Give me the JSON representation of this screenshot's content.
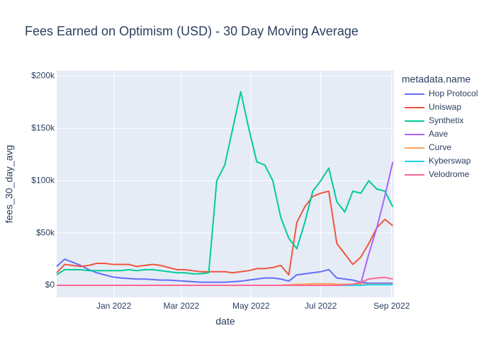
{
  "chart_data": {
    "type": "line",
    "title": "Fees Earned on Optimism (USD) - 30 Day Moving Average",
    "x_label": "date",
    "y_label": "fees_30_day_avg",
    "legend_title": "metadata.name",
    "legend": "right",
    "grid": true,
    "x": [
      "2021-11-12",
      "2021-11-19",
      "2021-11-26",
      "2021-12-03",
      "2021-12-10",
      "2021-12-17",
      "2021-12-24",
      "2021-12-31",
      "2022-01-07",
      "2022-01-14",
      "2022-01-21",
      "2022-01-28",
      "2022-02-04",
      "2022-02-11",
      "2022-02-18",
      "2022-02-25",
      "2022-03-04",
      "2022-03-11",
      "2022-03-18",
      "2022-03-25",
      "2022-04-01",
      "2022-04-08",
      "2022-04-15",
      "2022-04-22",
      "2022-04-29",
      "2022-05-06",
      "2022-05-13",
      "2022-05-20",
      "2022-05-27",
      "2022-06-03",
      "2022-06-10",
      "2022-06-17",
      "2022-06-24",
      "2022-07-01",
      "2022-07-08",
      "2022-07-15",
      "2022-07-22",
      "2022-07-29",
      "2022-08-05",
      "2022-08-12",
      "2022-08-19",
      "2022-08-26",
      "2022-09-02"
    ],
    "xlim": [
      "2021-11-12",
      "2022-09-03"
    ],
    "xticks": [
      {
        "value": "2022-01-01",
        "label": "Jan 2022"
      },
      {
        "value": "2022-03-01",
        "label": "Mar 2022"
      },
      {
        "value": "2022-05-01",
        "label": "May 2022"
      },
      {
        "value": "2022-07-01",
        "label": "Jul 2022"
      },
      {
        "value": "2022-09-01",
        "label": "Sep 2022"
      }
    ],
    "ylim": [
      -11500,
      205000
    ],
    "yticks": [
      {
        "value": 0,
        "label": "$0"
      },
      {
        "value": 50000,
        "label": "$50k"
      },
      {
        "value": 100000,
        "label": "$100k"
      },
      {
        "value": 150000,
        "label": "$150k"
      },
      {
        "value": 200000,
        "label": "$200k"
      }
    ],
    "series": [
      {
        "name": "Hop Protocol",
        "color": "#636efa",
        "values": [
          18000,
          25000,
          22000,
          19000,
          15000,
          12000,
          10000,
          8000,
          7000,
          6500,
          6000,
          6000,
          5500,
          5000,
          5000,
          4500,
          4000,
          3500,
          3000,
          3000,
          3000,
          3000,
          3500,
          4000,
          5000,
          6000,
          7000,
          7000,
          6000,
          4000,
          10000,
          11000,
          12000,
          13000,
          15000,
          7000,
          6000,
          5000,
          3000,
          2000,
          2000,
          2000,
          2000
        ]
      },
      {
        "name": "Uniswap",
        "color": "#EF553B",
        "values": [
          12000,
          20000,
          19000,
          18000,
          19000,
          21000,
          21000,
          20000,
          20000,
          20000,
          18000,
          19000,
          20000,
          19000,
          17000,
          15000,
          15000,
          14000,
          13000,
          13000,
          13000,
          13000,
          12000,
          13000,
          14000,
          16000,
          16000,
          17000,
          19000,
          10000,
          60000,
          75000,
          85000,
          88000,
          90000,
          40000,
          30000,
          20000,
          27000,
          40000,
          55000,
          63000,
          57000
        ]
      },
      {
        "name": "Synthetix",
        "color": "#00cc96",
        "values": [
          10000,
          15000,
          15000,
          15000,
          14000,
          14000,
          14000,
          14000,
          14000,
          15000,
          14000,
          15000,
          15000,
          14000,
          13000,
          12000,
          12000,
          11000,
          11000,
          12000,
          100000,
          115000,
          150000,
          185000,
          150000,
          118000,
          115000,
          100000,
          65000,
          45000,
          35000,
          60000,
          90000,
          100000,
          112000,
          80000,
          70000,
          90000,
          88000,
          100000,
          92000,
          90000,
          75000
        ]
      },
      {
        "name": "Aave",
        "color": "#ab63fa",
        "values": [
          null,
          null,
          null,
          null,
          null,
          null,
          null,
          null,
          null,
          null,
          null,
          null,
          null,
          null,
          null,
          null,
          null,
          null,
          null,
          null,
          null,
          null,
          null,
          null,
          null,
          null,
          null,
          null,
          null,
          null,
          null,
          null,
          null,
          null,
          null,
          null,
          null,
          0,
          2000,
          30000,
          55000,
          85000,
          118000
        ]
      },
      {
        "name": "Curve",
        "color": "#FFA15A",
        "values": [
          0,
          0,
          0,
          0,
          0,
          0,
          0,
          0,
          0,
          0,
          0,
          0,
          0,
          0,
          0,
          0,
          0,
          0,
          0,
          0,
          0,
          0,
          0,
          0,
          0,
          0,
          0,
          0,
          0,
          500,
          1000,
          1000,
          1500,
          1500,
          1500,
          1000,
          1000,
          1000,
          1000,
          1000,
          1000,
          1000,
          1000
        ]
      },
      {
        "name": "Kyberswap",
        "color": "#19d3f3",
        "values": [
          0,
          0,
          0,
          0,
          0,
          0,
          0,
          0,
          0,
          0,
          0,
          0,
          0,
          0,
          0,
          0,
          0,
          0,
          0,
          0,
          0,
          0,
          0,
          0,
          0,
          0,
          0,
          0,
          0,
          0,
          0,
          0,
          0,
          0,
          0,
          0,
          0,
          0,
          0,
          500,
          500,
          500,
          500
        ]
      },
      {
        "name": "Velodrome",
        "color": "#FF6692",
        "values": [
          0,
          0,
          0,
          0,
          0,
          0,
          0,
          0,
          0,
          0,
          0,
          0,
          0,
          0,
          0,
          0,
          0,
          0,
          0,
          0,
          0,
          0,
          0,
          0,
          0,
          0,
          0,
          0,
          0,
          0,
          0,
          0,
          0,
          0,
          0,
          0,
          500,
          1000,
          3000,
          6000,
          7000,
          7500,
          6000
        ]
      }
    ]
  }
}
